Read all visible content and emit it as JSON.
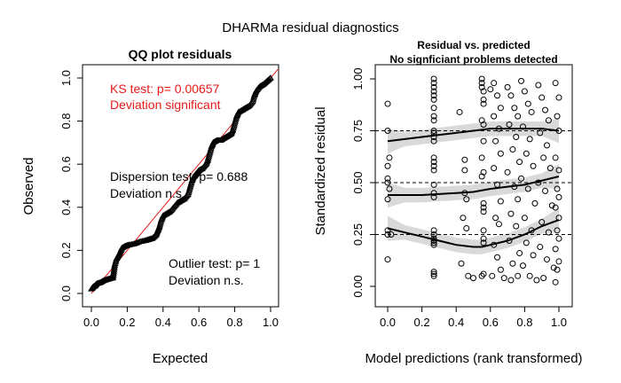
{
  "page_title": "DHARMa residual diagnostics",
  "chart_data": [
    {
      "type": "scatter",
      "title": "QQ plot residuals",
      "xlabel": "Expected",
      "ylabel": "Observed",
      "xlim": [
        0,
        1
      ],
      "ylim": [
        0,
        1
      ],
      "xticks": [
        "0.0",
        "0.2",
        "0.4",
        "0.6",
        "0.8",
        "1.0"
      ],
      "yticks": [
        "0.0",
        "0.2",
        "0.4",
        "0.6",
        "0.8",
        "1.0"
      ],
      "reference_line": {
        "from": [
          0,
          0
        ],
        "to": [
          1,
          1
        ],
        "color": "#e8191a"
      },
      "qq_points": [
        [
          0.0,
          0.02
        ],
        [
          0.01,
          0.03
        ],
        [
          0.02,
          0.035
        ],
        [
          0.03,
          0.045
        ],
        [
          0.05,
          0.05
        ],
        [
          0.07,
          0.06
        ],
        [
          0.09,
          0.065
        ],
        [
          0.11,
          0.07
        ],
        [
          0.12,
          0.072
        ],
        [
          0.125,
          0.1
        ],
        [
          0.13,
          0.13
        ],
        [
          0.14,
          0.16
        ],
        [
          0.15,
          0.175
        ],
        [
          0.16,
          0.19
        ],
        [
          0.17,
          0.21
        ],
        [
          0.19,
          0.22
        ],
        [
          0.21,
          0.225
        ],
        [
          0.24,
          0.23
        ],
        [
          0.27,
          0.24
        ],
        [
          0.3,
          0.245
        ],
        [
          0.32,
          0.25
        ],
        [
          0.34,
          0.255
        ],
        [
          0.36,
          0.27
        ],
        [
          0.37,
          0.29
        ],
        [
          0.38,
          0.31
        ],
        [
          0.39,
          0.34
        ],
        [
          0.4,
          0.36
        ],
        [
          0.42,
          0.37
        ],
        [
          0.44,
          0.38
        ],
        [
          0.46,
          0.4
        ],
        [
          0.48,
          0.42
        ],
        [
          0.5,
          0.43
        ],
        [
          0.52,
          0.44
        ],
        [
          0.54,
          0.46
        ],
        [
          0.55,
          0.49
        ],
        [
          0.56,
          0.52
        ],
        [
          0.57,
          0.54
        ],
        [
          0.58,
          0.55
        ],
        [
          0.59,
          0.56
        ],
        [
          0.6,
          0.57
        ],
        [
          0.62,
          0.58
        ],
        [
          0.64,
          0.6
        ],
        [
          0.65,
          0.62
        ],
        [
          0.66,
          0.65
        ],
        [
          0.67,
          0.68
        ],
        [
          0.68,
          0.7
        ],
        [
          0.7,
          0.71
        ],
        [
          0.72,
          0.71
        ],
        [
          0.74,
          0.72
        ],
        [
          0.76,
          0.73
        ],
        [
          0.78,
          0.74
        ],
        [
          0.79,
          0.76
        ],
        [
          0.8,
          0.79
        ],
        [
          0.81,
          0.82
        ],
        [
          0.82,
          0.84
        ],
        [
          0.84,
          0.85
        ],
        [
          0.86,
          0.86
        ],
        [
          0.88,
          0.87
        ],
        [
          0.9,
          0.89
        ],
        [
          0.91,
          0.92
        ],
        [
          0.92,
          0.94
        ],
        [
          0.94,
          0.96
        ],
        [
          0.96,
          0.97
        ],
        [
          0.98,
          0.985
        ],
        [
          1.0,
          1.0
        ]
      ],
      "annotations": [
        {
          "lines": [
            "KS test: p= 0.00657",
            "Deviation  significant"
          ],
          "color": "#e8191a"
        },
        {
          "lines": [
            "Dispersion test: p= 0.688",
            "Deviation  n.s."
          ],
          "color": "#000000"
        },
        {
          "lines": [
            "Outlier test: p= 1",
            "Deviation  n.s."
          ],
          "color": "#000000"
        }
      ]
    },
    {
      "type": "scatter",
      "title": "Residual vs. predicted",
      "subtitle": "No signficiant problems detected",
      "xlabel": "Model predictions (rank transformed)",
      "ylabel": "Standardized residual",
      "xlim": [
        0,
        1
      ],
      "ylim": [
        0,
        1
      ],
      "xticks": [
        "0.0",
        "0.2",
        "0.4",
        "0.6",
        "0.8",
        "1.0"
      ],
      "yticks": [
        "0.00",
        "0.25",
        "0.50",
        "0.75",
        "1.00"
      ],
      "reference_lines": [
        0.25,
        0.5,
        0.75
      ],
      "quantile_curves": [
        {
          "quantile": 0.25,
          "x": [
            0.0,
            0.1,
            0.2,
            0.3,
            0.4,
            0.5,
            0.55,
            0.6,
            0.7,
            0.8,
            0.9,
            1.0
          ],
          "y": [
            0.28,
            0.26,
            0.24,
            0.22,
            0.2,
            0.19,
            0.19,
            0.2,
            0.22,
            0.25,
            0.29,
            0.32
          ]
        },
        {
          "quantile": 0.5,
          "x": [
            0.0,
            0.1,
            0.2,
            0.3,
            0.4,
            0.5,
            0.6,
            0.7,
            0.8,
            0.9,
            1.0
          ],
          "y": [
            0.44,
            0.44,
            0.44,
            0.445,
            0.45,
            0.455,
            0.47,
            0.48,
            0.49,
            0.51,
            0.53
          ]
        },
        {
          "quantile": 0.75,
          "x": [
            0.0,
            0.1,
            0.2,
            0.3,
            0.4,
            0.5,
            0.6,
            0.7,
            0.8,
            0.9,
            1.0
          ],
          "y": [
            0.7,
            0.71,
            0.72,
            0.73,
            0.74,
            0.75,
            0.76,
            0.76,
            0.76,
            0.76,
            0.75
          ]
        }
      ],
      "residual_points": [
        [
          0.0,
          0.88
        ],
        [
          0.0,
          0.75
        ],
        [
          0.0,
          0.58
        ],
        [
          0.0,
          0.52
        ],
        [
          0.0,
          0.5
        ],
        [
          0.0,
          0.42
        ],
        [
          0.0,
          0.27
        ],
        [
          0.0,
          0.25
        ],
        [
          0.0,
          0.13
        ],
        [
          0.01,
          0.62
        ],
        [
          0.02,
          0.25
        ],
        [
          0.01,
          0.47
        ],
        [
          0.27,
          1.0
        ],
        [
          0.27,
          0.98
        ],
        [
          0.27,
          0.96
        ],
        [
          0.27,
          0.94
        ],
        [
          0.27,
          0.92
        ],
        [
          0.27,
          0.9
        ],
        [
          0.27,
          0.86
        ],
        [
          0.27,
          0.82
        ],
        [
          0.27,
          0.8
        ],
        [
          0.27,
          0.75
        ],
        [
          0.27,
          0.74
        ],
        [
          0.27,
          0.72
        ],
        [
          0.27,
          0.7
        ],
        [
          0.27,
          0.62
        ],
        [
          0.27,
          0.6
        ],
        [
          0.27,
          0.58
        ],
        [
          0.27,
          0.56
        ],
        [
          0.27,
          0.49
        ],
        [
          0.27,
          0.45
        ],
        [
          0.27,
          0.43
        ],
        [
          0.27,
          0.27
        ],
        [
          0.27,
          0.25
        ],
        [
          0.27,
          0.23
        ],
        [
          0.27,
          0.22
        ],
        [
          0.27,
          0.21
        ],
        [
          0.27,
          0.2
        ],
        [
          0.27,
          0.07
        ],
        [
          0.27,
          0.06
        ],
        [
          0.27,
          0.05
        ],
        [
          0.42,
          0.84
        ],
        [
          0.45,
          0.61
        ],
        [
          0.45,
          0.56
        ],
        [
          0.45,
          0.45
        ],
        [
          0.46,
          0.42
        ],
        [
          0.44,
          0.33
        ],
        [
          0.46,
          0.28
        ],
        [
          0.43,
          0.11
        ],
        [
          0.47,
          0.05
        ],
        [
          0.5,
          0.04
        ],
        [
          0.55,
          1.0
        ],
        [
          0.55,
          0.98
        ],
        [
          0.55,
          0.96
        ],
        [
          0.56,
          0.94
        ],
        [
          0.56,
          0.9
        ],
        [
          0.56,
          0.88
        ],
        [
          0.55,
          0.8
        ],
        [
          0.56,
          0.78
        ],
        [
          0.56,
          0.7
        ],
        [
          0.55,
          0.62
        ],
        [
          0.56,
          0.55
        ],
        [
          0.55,
          0.53
        ],
        [
          0.56,
          0.4
        ],
        [
          0.56,
          0.38
        ],
        [
          0.56,
          0.36
        ],
        [
          0.56,
          0.27
        ],
        [
          0.56,
          0.23
        ],
        [
          0.56,
          0.21
        ],
        [
          0.56,
          0.06
        ],
        [
          0.55,
          0.05
        ],
        [
          0.6,
          0.95
        ],
        [
          0.62,
          0.98
        ],
        [
          0.64,
          0.92
        ],
        [
          0.66,
          0.86
        ],
        [
          0.62,
          0.82
        ],
        [
          0.65,
          0.76
        ],
        [
          0.63,
          0.7
        ],
        [
          0.66,
          0.64
        ],
        [
          0.62,
          0.57
        ],
        [
          0.64,
          0.49
        ],
        [
          0.66,
          0.41
        ],
        [
          0.63,
          0.33
        ],
        [
          0.65,
          0.3
        ],
        [
          0.62,
          0.2
        ],
        [
          0.64,
          0.14
        ],
        [
          0.66,
          0.08
        ],
        [
          0.61,
          0.05
        ],
        [
          0.68,
          0.04
        ],
        [
          0.7,
          0.96
        ],
        [
          0.72,
          0.92
        ],
        [
          0.74,
          0.86
        ],
        [
          0.76,
          0.82
        ],
        [
          0.71,
          0.78
        ],
        [
          0.75,
          0.72
        ],
        [
          0.73,
          0.66
        ],
        [
          0.77,
          0.6
        ],
        [
          0.7,
          0.55
        ],
        [
          0.74,
          0.48
        ],
        [
          0.76,
          0.42
        ],
        [
          0.72,
          0.35
        ],
        [
          0.75,
          0.29
        ],
        [
          0.71,
          0.22
        ],
        [
          0.77,
          0.16
        ],
        [
          0.73,
          0.11
        ],
        [
          0.76,
          0.05
        ],
        [
          0.72,
          0.03
        ],
        [
          0.78,
          0.99
        ],
        [
          0.8,
          0.94
        ],
        [
          0.82,
          0.88
        ],
        [
          0.84,
          0.84
        ],
        [
          0.79,
          0.77
        ],
        [
          0.83,
          0.71
        ],
        [
          0.81,
          0.64
        ],
        [
          0.85,
          0.58
        ],
        [
          0.78,
          0.52
        ],
        [
          0.82,
          0.47
        ],
        [
          0.86,
          0.4
        ],
        [
          0.8,
          0.33
        ],
        [
          0.84,
          0.27
        ],
        [
          0.81,
          0.21
        ],
        [
          0.85,
          0.15
        ],
        [
          0.79,
          0.1
        ],
        [
          0.83,
          0.05
        ],
        [
          0.87,
          0.03
        ],
        [
          0.88,
          0.97
        ],
        [
          0.9,
          0.91
        ],
        [
          0.92,
          0.85
        ],
        [
          0.94,
          0.8
        ],
        [
          0.89,
          0.74
        ],
        [
          0.93,
          0.68
        ],
        [
          0.91,
          0.62
        ],
        [
          0.95,
          0.57
        ],
        [
          0.88,
          0.5
        ],
        [
          0.92,
          0.46
        ],
        [
          0.96,
          0.39
        ],
        [
          0.9,
          0.31
        ],
        [
          0.94,
          0.26
        ],
        [
          0.89,
          0.19
        ],
        [
          0.93,
          0.13
        ],
        [
          0.97,
          0.09
        ],
        [
          0.91,
          0.04
        ],
        [
          0.98,
          0.98
        ],
        [
          1.0,
          0.91
        ],
        [
          0.99,
          0.82
        ],
        [
          1.0,
          0.75
        ],
        [
          0.98,
          0.62
        ],
        [
          1.0,
          0.56
        ],
        [
          0.99,
          0.47
        ],
        [
          1.0,
          0.43
        ],
        [
          0.98,
          0.38
        ],
        [
          1.0,
          0.33
        ],
        [
          0.99,
          0.27
        ],
        [
          1.0,
          0.23
        ],
        [
          0.98,
          0.18
        ],
        [
          1.0,
          0.12
        ],
        [
          0.99,
          0.08
        ],
        [
          0.98,
          0.02
        ]
      ]
    }
  ]
}
